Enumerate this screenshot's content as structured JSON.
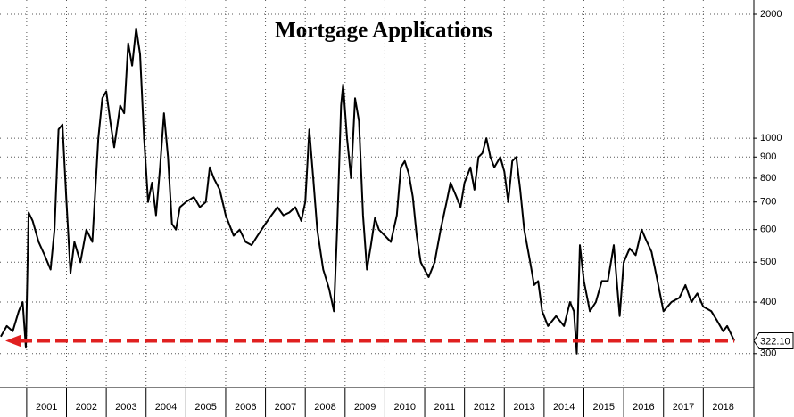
{
  "chart_data": {
    "type": "line",
    "title": "Mortgage Applications",
    "x": [
      2000.35,
      2000.5,
      2000.65,
      2000.8,
      2000.9,
      2000.98,
      2001.05,
      2001.15,
      2001.3,
      2001.45,
      2001.6,
      2001.7,
      2001.8,
      2001.9,
      2002.0,
      2002.1,
      2002.2,
      2002.35,
      2002.5,
      2002.65,
      2002.8,
      2002.9,
      2003.0,
      2003.1,
      2003.2,
      2003.35,
      2003.45,
      2003.55,
      2003.65,
      2003.75,
      2003.85,
      2003.95,
      2004.05,
      2004.15,
      2004.25,
      2004.35,
      2004.45,
      2004.55,
      2004.65,
      2004.75,
      2004.85,
      2005.0,
      2005.2,
      2005.35,
      2005.5,
      2005.6,
      2005.7,
      2005.85,
      2006.0,
      2006.2,
      2006.35,
      2006.5,
      2006.65,
      2006.8,
      2007.0,
      2007.15,
      2007.3,
      2007.45,
      2007.6,
      2007.75,
      2007.9,
      2008.0,
      2008.1,
      2008.2,
      2008.3,
      2008.45,
      2008.6,
      2008.72,
      2008.8,
      2008.9,
      2008.95,
      2009.05,
      2009.15,
      2009.25,
      2009.35,
      2009.45,
      2009.55,
      2009.65,
      2009.75,
      2009.85,
      2010.0,
      2010.15,
      2010.3,
      2010.4,
      2010.5,
      2010.6,
      2010.7,
      2010.8,
      2010.9,
      2011.0,
      2011.1,
      2011.25,
      2011.4,
      2011.55,
      2011.65,
      2011.8,
      2011.9,
      2012.0,
      2012.15,
      2012.25,
      2012.35,
      2012.45,
      2012.55,
      2012.65,
      2012.75,
      2012.9,
      2013.0,
      2013.1,
      2013.2,
      2013.3,
      2013.4,
      2013.5,
      2013.65,
      2013.75,
      2013.85,
      2013.95,
      2014.1,
      2014.3,
      2014.5,
      2014.65,
      2014.75,
      2014.82,
      2014.9,
      2015.0,
      2015.15,
      2015.3,
      2015.45,
      2015.6,
      2015.75,
      2015.9,
      2016.0,
      2016.15,
      2016.3,
      2016.45,
      2016.55,
      2016.7,
      2016.85,
      2017.0,
      2017.2,
      2017.4,
      2017.55,
      2017.7,
      2017.85,
      2018.0,
      2018.2,
      2018.35,
      2018.5,
      2018.6,
      2018.78
    ],
    "series": [
      {
        "color": "#000000",
        "values": [
          330,
          350,
          340,
          380,
          400,
          310,
          660,
          630,
          560,
          520,
          480,
          600,
          1050,
          1080,
          700,
          470,
          560,
          500,
          600,
          560,
          1000,
          1250,
          1300,
          1100,
          950,
          1200,
          1150,
          1700,
          1500,
          1850,
          1600,
          1000,
          700,
          780,
          650,
          850,
          1150,
          900,
          620,
          600,
          680,
          700,
          720,
          680,
          700,
          850,
          800,
          750,
          650,
          580,
          600,
          560,
          550,
          580,
          620,
          650,
          680,
          650,
          660,
          680,
          630,
          700,
          1050,
          800,
          600,
          480,
          430,
          380,
          600,
          1200,
          1350,
          1000,
          800,
          1250,
          1100,
          650,
          480,
          550,
          640,
          600,
          580,
          560,
          650,
          850,
          880,
          820,
          720,
          580,
          500,
          480,
          460,
          500,
          600,
          700,
          780,
          720,
          680,
          780,
          850,
          750,
          900,
          920,
          1000,
          900,
          850,
          900,
          830,
          700,
          880,
          900,
          750,
          600,
          500,
          440,
          450,
          380,
          350,
          370,
          350,
          400,
          380,
          300,
          550,
          450,
          380,
          400,
          450,
          450,
          550,
          370,
          500,
          540,
          520,
          600,
          570,
          530,
          450,
          380,
          400,
          410,
          440,
          400,
          420,
          390,
          380,
          360,
          340,
          350,
          322.1
        ]
      }
    ],
    "xlim": [
      2000.33,
      2019.27
    ],
    "xticks": [
      2001,
      2002,
      2003,
      2004,
      2005,
      2006,
      2007,
      2008,
      2009,
      2010,
      2011,
      2012,
      2013,
      2014,
      2015,
      2016,
      2017,
      2018
    ],
    "ylim": [
      248,
      2166
    ],
    "log_scale": true,
    "grid": true,
    "yticks": [
      300,
      400,
      500,
      600,
      700,
      800,
      900,
      1000,
      2000
    ],
    "reference_line": {
      "value": 322.1,
      "label": "322.10",
      "color": "#e02020"
    }
  }
}
